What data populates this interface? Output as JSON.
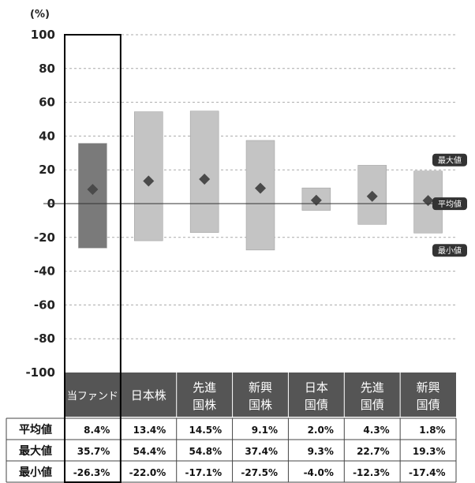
{
  "chart_data": {
    "type": "bar",
    "unit_label": "(%)",
    "ylim": [
      -100,
      100
    ],
    "y_ticks": [
      100,
      80,
      60,
      40,
      20,
      0,
      -20,
      -40,
      -60,
      -80,
      -100
    ],
    "categories": [
      [
        "当ファンド"
      ],
      [
        "日本株"
      ],
      [
        "先進",
        "国株"
      ],
      [
        "新興",
        "国株"
      ],
      [
        "日本",
        "国債"
      ],
      [
        "先進",
        "国債"
      ],
      [
        "新興",
        "国債"
      ]
    ],
    "series": [
      {
        "name": "平均値",
        "values": [
          8.4,
          13.4,
          14.5,
          9.1,
          2.0,
          4.3,
          1.8
        ]
      },
      {
        "name": "最大値",
        "values": [
          35.7,
          54.4,
          54.8,
          37.4,
          9.3,
          22.7,
          19.3
        ]
      },
      {
        "name": "最小値",
        "values": [
          -26.3,
          -22.0,
          -17.1,
          -27.5,
          -4.0,
          -12.3,
          -17.4
        ]
      }
    ],
    "table_rows": [
      {
        "label": "平均値",
        "cells": [
          "8.4%",
          "13.4%",
          "14.5%",
          "9.1%",
          "2.0%",
          "4.3%",
          "1.8%"
        ]
      },
      {
        "label": "最大値",
        "cells": [
          "35.7%",
          "54.4%",
          "54.8%",
          "37.4%",
          "9.3%",
          "22.7%",
          "19.3%"
        ]
      },
      {
        "label": "最小値",
        "cells": [
          "-26.3%",
          "-22.0%",
          "-17.1%",
          "-27.5%",
          "-4.0%",
          "-12.3%",
          "-17.4%"
        ]
      }
    ],
    "legend": [
      "最大値",
      "平均値",
      "最小値"
    ],
    "grid": true,
    "colors": {
      "fund_bar": "#7a7a7a",
      "asset_bar": "#c4c4c4",
      "marker": "#4a4a4a",
      "header_band": "#555555",
      "grid": "#aaaaaa"
    }
  }
}
